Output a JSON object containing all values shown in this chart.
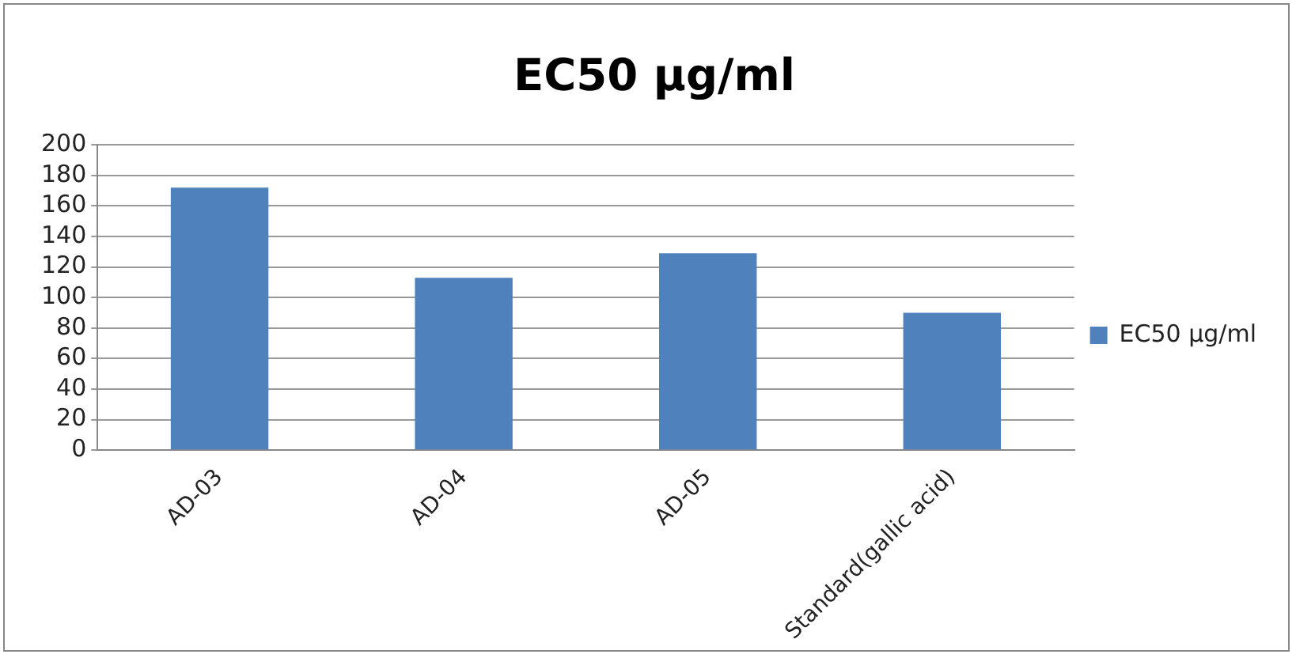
{
  "chart_data": {
    "type": "bar",
    "title": "EC50 µg/ml",
    "categories": [
      "AD-03",
      "AD-04",
      "AD-05",
      "Standard(gallic acid)"
    ],
    "series": [
      {
        "name": "EC50 µg/ml",
        "color": "#4f81bd",
        "values": [
          172,
          113,
          129,
          90
        ]
      }
    ],
    "ylim": [
      0,
      200
    ],
    "yticks": [
      0,
      20,
      40,
      60,
      80,
      100,
      120,
      140,
      160,
      180,
      200
    ],
    "grid": "y",
    "legend": "right"
  }
}
